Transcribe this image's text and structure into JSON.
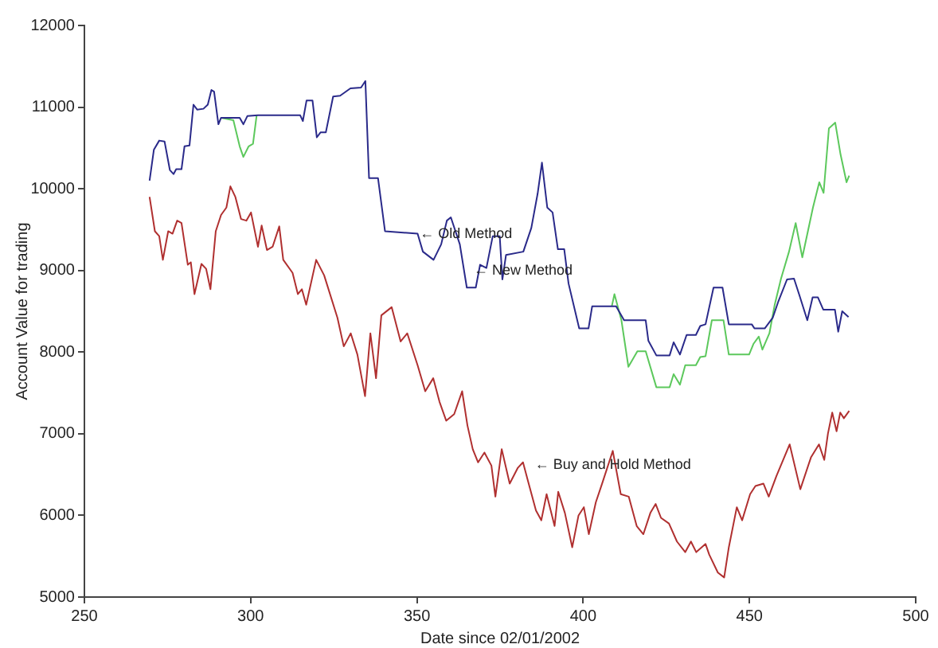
{
  "chart_data": {
    "type": "line",
    "xlabel": "Date since 02/01/2002",
    "ylabel": "Account Value for trading",
    "xlim": [
      250,
      500
    ],
    "xticks": [
      250,
      300,
      350,
      400,
      450,
      500
    ],
    "ylim": [
      5000,
      12000
    ],
    "yticks": [
      5000,
      6000,
      7000,
      8000,
      9000,
      10000,
      11000,
      12000
    ],
    "legend": false,
    "marker": "none",
    "line_style": "solid",
    "annotations": [
      {
        "text": "← Old Method",
        "x": 348,
        "y": 9450
      },
      {
        "text": "← New Method",
        "x": 364.2,
        "y": 9000
      },
      {
        "text": "← Buy and Hold Method",
        "x": 382.6,
        "y": 6620
      }
    ],
    "series": [
      {
        "color": "#5cc85c",
        "x": [
          291.1,
          294.8,
          296.7,
          297.8,
          299.4,
          300.7,
          301.8,
          350.2,
          408.6,
          409.4,
          411.5,
          413.6,
          416.3,
          418.8,
          422.0,
          426.0,
          427.2,
          429.1,
          430.7,
          433.9,
          435.2,
          436.8,
          438.7,
          442.2,
          443.8,
          449.9,
          451.2,
          452.8,
          453.9,
          456.0,
          457.6,
          459.5,
          461.9,
          463.9,
          465.9,
          469.1,
          471.0,
          472.3,
          473.9,
          475.8,
          477.4,
          479.2,
          480.0
        ],
        "values": [
          10870,
          10840,
          10520,
          10390,
          10520,
          10550,
          10900,
          null,
          8560,
          8710,
          8390,
          7820,
          8010,
          8010,
          7570,
          7570,
          7730,
          7600,
          7840,
          7840,
          7940,
          7950,
          8390,
          8390,
          7970,
          7970,
          8100,
          8190,
          8030,
          8230,
          8580,
          8900,
          9230,
          9580,
          9160,
          9770,
          10080,
          9950,
          10740,
          10810,
          10420,
          10080,
          10160
        ]
      },
      {
        "color": "#2a2a8a",
        "x": [
          269.6,
          270.9,
          272.5,
          274.1,
          275.7,
          276.8,
          277.6,
          279.2,
          280.1,
          281.6,
          282.8,
          283.9,
          285.8,
          287.1,
          288.2,
          289.0,
          290.3,
          291.1,
          296.7,
          297.8,
          299.0,
          302.2,
          314.9,
          315.7,
          316.8,
          318.6,
          319.9,
          321.0,
          322.6,
          324.8,
          326.9,
          330.0,
          333.2,
          334.5,
          335.6,
          338.3,
          340.4,
          350.2,
          351.8,
          355.0,
          357.3,
          359.0,
          360.2,
          362.9,
          365.0,
          367.7,
          369.0,
          370.9,
          372.8,
          374.9,
          375.7,
          376.8,
          382.0,
          384.4,
          386.3,
          387.6,
          389.2,
          390.8,
          392.4,
          394.3,
          395.6,
          398.8,
          401.6,
          402.7,
          409.9,
          412.3,
          418.8,
          419.6,
          422.0,
          426.0,
          427.2,
          429.1,
          431.1,
          433.9,
          435.2,
          436.8,
          439.2,
          441.9,
          443.8,
          450.7,
          451.5,
          454.6,
          457.0,
          458.6,
          461.3,
          463.4,
          465.0,
          467.4,
          469.0,
          470.6,
          472.2,
          475.7,
          476.7,
          477.9,
          479.8
        ],
        "values": [
          10100,
          10480,
          10590,
          10580,
          10230,
          10180,
          10240,
          10240,
          10520,
          10530,
          11030,
          10970,
          10980,
          11030,
          11210,
          11190,
          10790,
          10870,
          10870,
          10790,
          10890,
          10900,
          10900,
          10830,
          11080,
          11080,
          10630,
          10690,
          10690,
          11130,
          11140,
          11230,
          11240,
          11320,
          10130,
          10130,
          9480,
          9450,
          9230,
          9130,
          9320,
          9610,
          9650,
          9320,
          8790,
          8790,
          9070,
          9030,
          9420,
          9420,
          8890,
          9190,
          9230,
          9520,
          9940,
          10320,
          9770,
          9710,
          9260,
          9260,
          8840,
          8290,
          8290,
          8560,
          8560,
          8390,
          8390,
          8140,
          7960,
          7960,
          8120,
          7970,
          8210,
          8210,
          8320,
          8340,
          8790,
          8790,
          8340,
          8340,
          8290,
          8290,
          8420,
          8610,
          8890,
          8900,
          8700,
          8390,
          8670,
          8670,
          8520,
          8520,
          8250,
          8500,
          8430
        ]
      },
      {
        "color": "#b03030",
        "x": [
          269.6,
          271.2,
          272.5,
          273.6,
          275.2,
          276.5,
          277.9,
          279.2,
          281.1,
          282.0,
          283.1,
          285.2,
          286.6,
          287.9,
          289.5,
          291.1,
          292.7,
          293.9,
          295.4,
          297.1,
          298.7,
          300.1,
          302.2,
          303.3,
          304.9,
          306.6,
          308.6,
          309.8,
          312.6,
          314.2,
          315.4,
          316.7,
          319.7,
          322.1,
          326.1,
          328.0,
          330.1,
          332.1,
          334.4,
          336.0,
          337.7,
          339.3,
          342.4,
          345.1,
          347.1,
          350.2,
          352.5,
          354.9,
          356.8,
          358.8,
          361.2,
          363.6,
          365.2,
          366.8,
          368.4,
          370.3,
          372.4,
          373.6,
          375.5,
          377.9,
          380.3,
          381.9,
          383.4,
          385.8,
          387.4,
          389.0,
          391.4,
          392.5,
          394.5,
          396.7,
          398.6,
          400.2,
          401.7,
          403.8,
          405.7,
          408.9,
          411.3,
          413.7,
          416.1,
          418.1,
          420.2,
          421.8,
          423.4,
          425.8,
          428.2,
          430.7,
          432.4,
          434.0,
          436.8,
          437.9,
          440.5,
          442.4,
          443.8,
          446.2,
          447.8,
          450.2,
          451.8,
          454.2,
          455.8,
          458.1,
          462.1,
          465.3,
          468.5,
          470.9,
          472.5,
          473.6,
          474.9,
          476.2,
          477.3,
          478.4,
          480.0
        ],
        "values": [
          9900,
          9480,
          9420,
          9130,
          9480,
          9450,
          9610,
          9580,
          9070,
          9100,
          8710,
          9080,
          9020,
          8770,
          9480,
          9680,
          9770,
          10030,
          9900,
          9630,
          9610,
          9710,
          9290,
          9550,
          9250,
          9290,
          9540,
          9130,
          8970,
          8710,
          8770,
          8580,
          9130,
          8940,
          8420,
          8070,
          8230,
          7970,
          7460,
          8230,
          7680,
          8450,
          8550,
          8130,
          8230,
          7840,
          7520,
          7680,
          7390,
          7160,
          7240,
          7520,
          7100,
          6810,
          6650,
          6770,
          6610,
          6230,
          6810,
          6390,
          6580,
          6650,
          6420,
          6060,
          5940,
          6260,
          5870,
          6290,
          6030,
          5610,
          6000,
          6100,
          5770,
          6160,
          6390,
          6790,
          6260,
          6230,
          5870,
          5770,
          6030,
          6140,
          5970,
          5900,
          5680,
          5550,
          5680,
          5550,
          5650,
          5520,
          5300,
          5240,
          5610,
          6100,
          5940,
          6260,
          6360,
          6390,
          6230,
          6480,
          6870,
          6320,
          6710,
          6870,
          6680,
          7000,
          7260,
          7030,
          7260,
          7190,
          7280
        ]
      }
    ]
  }
}
